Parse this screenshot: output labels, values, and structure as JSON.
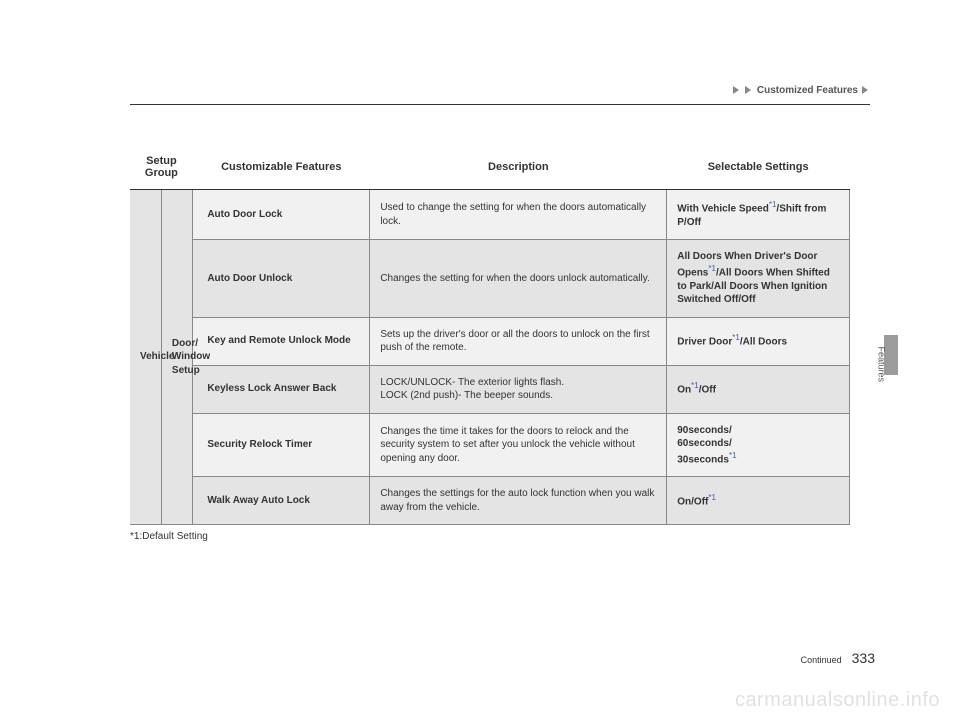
{
  "breadcrumb": {
    "label": "Customized Features"
  },
  "headers": {
    "group": "Setup Group",
    "features": "Customizable Features",
    "description": "Description",
    "settings": "Selectable Settings"
  },
  "group": {
    "label": "Vehicle",
    "sub": "Door/\nWindow\nSetup"
  },
  "rows": [
    {
      "feature": "Auto Door Lock",
      "description": "Used to change the setting for when the doors automatically lock.",
      "settings_html": "With Vehicle Speed<sup class='sup'>*1</sup>/Shift from P/Off"
    },
    {
      "feature": "Auto Door Unlock",
      "description": "Changes the setting for when the doors unlock automatically.",
      "settings_html": "All Doors When Driver's Door Opens<sup class='sup'>*1</sup>/All Doors When Shifted to Park/All Doors When Ignition Switched Off/Off"
    },
    {
      "feature": "Key and Remote Unlock Mode",
      "description": "Sets up the driver's door or all the doors to unlock on the first push of the remote.",
      "settings_html": "Driver Door<sup class='sup'>*1</sup>/All Doors"
    },
    {
      "feature": "Keyless Lock Answer Back",
      "description": "LOCK/UNLOCK- The exterior lights flash.\nLOCK (2nd push)- The beeper sounds.",
      "settings_html": "On<sup class='sup'>*1</sup>/Off"
    },
    {
      "feature": "Security Relock Timer",
      "description": "Changes the time it takes for the doors to relock and the security system to set after you unlock the vehicle without opening any door.",
      "settings_html": "90seconds/<br>60seconds/<br>30seconds<sup class='sup'>*1</sup>"
    },
    {
      "feature": "Walk Away Auto Lock",
      "description": "Changes the settings for the auto lock function when you walk away from the vehicle.",
      "settings_html": "On/Off<sup class='sup'>*1</sup>"
    }
  ],
  "footnote": "*1:Default Setting",
  "footer": {
    "continued": "Continued",
    "page": "333"
  },
  "side": {
    "label": "Features"
  },
  "watermark": "carmanualsonline.info",
  "colors": {
    "zebra_a": "#f1f1f2",
    "zebra_b": "#e4e4e5",
    "rule": "#888888",
    "tab": "#9b9b9b"
  }
}
